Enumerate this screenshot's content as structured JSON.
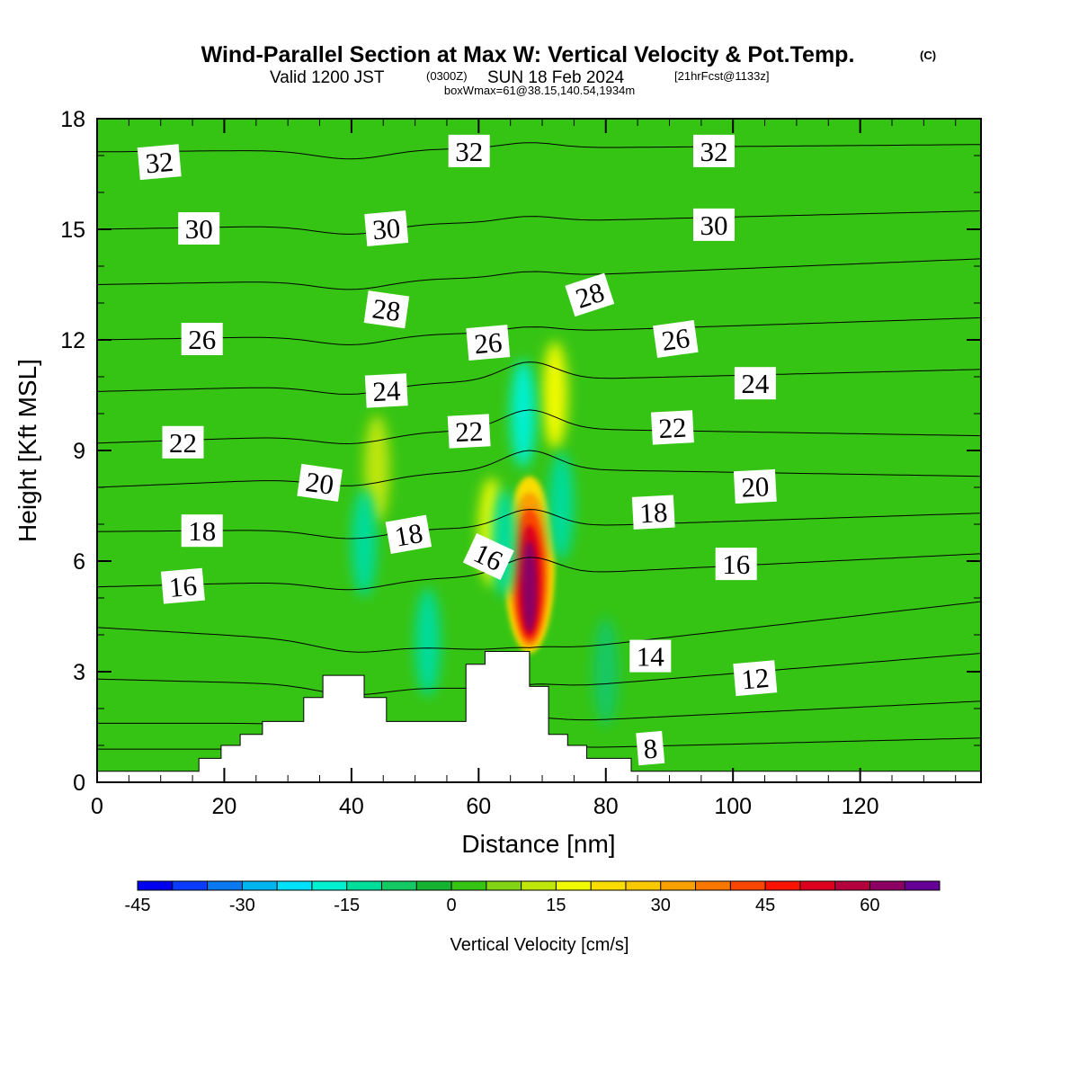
{
  "header": {
    "title_main": "Wind-Parallel Section at Max W: Vertical Velocity & Pot.Temp.",
    "title_copyright": "(C)",
    "valid_a": "Valid 1200 JST",
    "valid_zulu": "(0300Z)",
    "valid_b": "SUN 18 Feb 2024",
    "forecast_info": "[21hrFcst@1133z]",
    "box_info": "boxWmax=61@38.15,140.54,1934m"
  },
  "chart_data": {
    "type": "heatmap",
    "xlabel": "Distance [nm]",
    "ylabel": "Height [Kft MSL]",
    "xlim": [
      0,
      139
    ],
    "ylim": [
      0,
      18
    ],
    "x_ticks": [
      0,
      20,
      40,
      60,
      80,
      100,
      120
    ],
    "y_ticks": [
      0,
      3,
      6,
      9,
      12,
      15,
      18
    ],
    "grid": false,
    "background_value_cm_s": 0,
    "colorbar": {
      "title": "Vertical Velocity [cm/s]",
      "tick_labels": [
        "-45",
        "-30",
        "-15",
        "0",
        "15",
        "30",
        "45",
        "60"
      ],
      "tick_values": [
        -45,
        -30,
        -15,
        0,
        15,
        30,
        45,
        60
      ],
      "bins": [
        {
          "lo": -45,
          "hi": -40,
          "color": "#0000f0"
        },
        {
          "lo": -40,
          "hi": -35,
          "color": "#0a3cff"
        },
        {
          "lo": -35,
          "hi": -30,
          "color": "#0a78f0"
        },
        {
          "lo": -30,
          "hi": -25,
          "color": "#00b4f0"
        },
        {
          "lo": -25,
          "hi": -20,
          "color": "#00e0ff"
        },
        {
          "lo": -20,
          "hi": -15,
          "color": "#00f0d0"
        },
        {
          "lo": -15,
          "hi": -10,
          "color": "#00dc9a"
        },
        {
          "lo": -10,
          "hi": -5,
          "color": "#14c864"
        },
        {
          "lo": -5,
          "hi": 0,
          "color": "#14b432"
        },
        {
          "lo": 0,
          "hi": 5,
          "color": "#36c414"
        },
        {
          "lo": 5,
          "hi": 10,
          "color": "#82d414"
        },
        {
          "lo": 10,
          "hi": 15,
          "color": "#bee60a"
        },
        {
          "lo": 15,
          "hi": 20,
          "color": "#f0fa00"
        },
        {
          "lo": 20,
          "hi": 25,
          "color": "#fadc00"
        },
        {
          "lo": 25,
          "hi": 30,
          "color": "#fac800"
        },
        {
          "lo": 30,
          "hi": 35,
          "color": "#faa000"
        },
        {
          "lo": 35,
          "hi": 40,
          "color": "#fa7800"
        },
        {
          "lo": 40,
          "hi": 45,
          "color": "#fa4600"
        },
        {
          "lo": 45,
          "hi": 50,
          "color": "#fa1400"
        },
        {
          "lo": 50,
          "hi": 55,
          "color": "#dc001e"
        },
        {
          "lo": 55,
          "hi": 60,
          "color": "#b4003c"
        },
        {
          "lo": 60,
          "hi": 65,
          "color": "#8c0064"
        },
        {
          "lo": 65,
          "hi": 70,
          "color": "#640096"
        }
      ]
    },
    "w_features": [
      {
        "kind": "updraft_core",
        "x": 68,
        "y_bottom": 3.5,
        "y_top": 8.3,
        "max_cm_s": 61
      },
      {
        "kind": "updraft_band",
        "x": 62,
        "y": 6.8,
        "value_cm_s": 15
      },
      {
        "kind": "updraft_band",
        "x": 72,
        "y": 10.5,
        "value_cm_s": 15
      },
      {
        "kind": "updraft_band",
        "x": 44,
        "y": 8.5,
        "value_cm_s": 12
      },
      {
        "kind": "downdraft",
        "x": 67,
        "y": 10,
        "value_cm_s": -20
      },
      {
        "kind": "downdraft",
        "x": 64,
        "y": 6.5,
        "value_cm_s": -15
      },
      {
        "kind": "downdraft",
        "x": 73,
        "y": 7.5,
        "value_cm_s": -15
      },
      {
        "kind": "downdraft",
        "x": 42,
        "y": 6.5,
        "value_cm_s": -15
      },
      {
        "kind": "downdraft",
        "x": 52,
        "y": 3.8,
        "value_cm_s": -12
      },
      {
        "kind": "downdraft",
        "x": 80,
        "y": 3.0,
        "value_cm_s": -10
      }
    ],
    "terrain": [
      {
        "x": 0,
        "h": 0.3
      },
      {
        "x": 16,
        "h": 0.3
      },
      {
        "x": 16,
        "h": 0.65
      },
      {
        "x": 19.5,
        "h": 0.65
      },
      {
        "x": 19.5,
        "h": 1.0
      },
      {
        "x": 22.5,
        "h": 1.0
      },
      {
        "x": 22.5,
        "h": 1.3
      },
      {
        "x": 26,
        "h": 1.3
      },
      {
        "x": 26,
        "h": 1.65
      },
      {
        "x": 32.5,
        "h": 1.65
      },
      {
        "x": 32.5,
        "h": 2.3
      },
      {
        "x": 35.5,
        "h": 2.3
      },
      {
        "x": 35.5,
        "h": 2.9
      },
      {
        "x": 42,
        "h": 2.9
      },
      {
        "x": 42,
        "h": 2.3
      },
      {
        "x": 45.5,
        "h": 2.3
      },
      {
        "x": 45.5,
        "h": 1.65
      },
      {
        "x": 58,
        "h": 1.65
      },
      {
        "x": 58,
        "h": 3.2
      },
      {
        "x": 61,
        "h": 3.2
      },
      {
        "x": 61,
        "h": 3.55
      },
      {
        "x": 68,
        "h": 3.55
      },
      {
        "x": 68,
        "h": 2.6
      },
      {
        "x": 71,
        "h": 2.6
      },
      {
        "x": 71,
        "h": 1.3
      },
      {
        "x": 74,
        "h": 1.3
      },
      {
        "x": 74,
        "h": 1.0
      },
      {
        "x": 77,
        "h": 1.0
      },
      {
        "x": 77,
        "h": 0.65
      },
      {
        "x": 84,
        "h": 0.65
      },
      {
        "x": 84,
        "h": 0.3
      },
      {
        "x": 139,
        "h": 0.3
      }
    ],
    "theta_contours": [
      {
        "theta": 8,
        "left_y": 0.9,
        "mid_y": 0.9,
        "right_y": 1.2
      },
      {
        "theta": 10,
        "left_y": 1.6,
        "mid_y": 1.6,
        "right_y": 2.2
      },
      {
        "theta": 12,
        "left_y": 2.8,
        "mid_y": 2.5,
        "right_y": 3.5
      },
      {
        "theta": 14,
        "left_y": 4.2,
        "mid_y": 3.5,
        "right_y": 4.9
      },
      {
        "theta": 16,
        "left_y": 5.3,
        "mid_y": 5.6,
        "right_y": 6.2
      },
      {
        "theta": 18,
        "left_y": 6.8,
        "mid_y": 6.9,
        "right_y": 7.3
      },
      {
        "theta": 20,
        "left_y": 8.0,
        "mid_y": 8.5,
        "right_y": 8.3
      },
      {
        "theta": 22,
        "left_y": 9.2,
        "mid_y": 9.6,
        "right_y": 9.4
      },
      {
        "theta": 24,
        "left_y": 10.6,
        "mid_y": 10.9,
        "right_y": 11.2
      },
      {
        "theta": 26,
        "left_y": 12.0,
        "mid_y": 12.2,
        "right_y": 12.6
      },
      {
        "theta": 28,
        "left_y": 13.5,
        "mid_y": 13.7,
        "right_y": 14.2
      },
      {
        "theta": 30,
        "left_y": 15.0,
        "mid_y": 15.2,
        "right_y": 15.5
      },
      {
        "theta": 32,
        "left_y": 17.1,
        "mid_y": 17.2,
        "right_y": 17.3
      }
    ],
    "contour_labels": [
      {
        "text": "32",
        "x": 9.8,
        "y": 16.8,
        "angle": -5
      },
      {
        "text": "32",
        "x": 58.5,
        "y": 17.1,
        "angle": 0
      },
      {
        "text": "32",
        "x": 97.0,
        "y": 17.1,
        "angle": 0
      },
      {
        "text": "30",
        "x": 16.0,
        "y": 15.0,
        "angle": 0
      },
      {
        "text": "30",
        "x": 45.5,
        "y": 15.0,
        "angle": -5
      },
      {
        "text": "30",
        "x": 97.0,
        "y": 15.1,
        "angle": 0
      },
      {
        "text": "28",
        "x": 45.5,
        "y": 12.8,
        "angle": 8
      },
      {
        "text": "28",
        "x": 77.5,
        "y": 13.2,
        "angle": -18
      },
      {
        "text": "26",
        "x": 16.5,
        "y": 12.0,
        "angle": 0
      },
      {
        "text": "26",
        "x": 61.5,
        "y": 11.9,
        "angle": -5
      },
      {
        "text": "26",
        "x": 91.0,
        "y": 12.0,
        "angle": -8
      },
      {
        "text": "24",
        "x": 45.5,
        "y": 10.6,
        "angle": -3
      },
      {
        "text": "24",
        "x": 103.5,
        "y": 10.8,
        "angle": 0
      },
      {
        "text": "22",
        "x": 13.5,
        "y": 9.2,
        "angle": 0
      },
      {
        "text": "22",
        "x": 58.5,
        "y": 9.5,
        "angle": -3
      },
      {
        "text": "22",
        "x": 90.5,
        "y": 9.6,
        "angle": -3
      },
      {
        "text": "20",
        "x": 35.0,
        "y": 8.1,
        "angle": 8
      },
      {
        "text": "20",
        "x": 103.5,
        "y": 8.0,
        "angle": -3
      },
      {
        "text": "18",
        "x": 16.5,
        "y": 6.8,
        "angle": 0
      },
      {
        "text": "18",
        "x": 49.0,
        "y": 6.7,
        "angle": -10
      },
      {
        "text": "18",
        "x": 87.5,
        "y": 7.3,
        "angle": -3
      },
      {
        "text": "16",
        "x": 13.5,
        "y": 5.3,
        "angle": -5
      },
      {
        "text": "16",
        "x": 61.5,
        "y": 6.1,
        "angle": 25
      },
      {
        "text": "16",
        "x": 100.5,
        "y": 5.9,
        "angle": 0
      },
      {
        "text": "14",
        "x": 87.0,
        "y": 3.4,
        "angle": 0
      },
      {
        "text": "12",
        "x": 103.5,
        "y": 2.8,
        "angle": -5
      },
      {
        "text": "8",
        "x": 87.0,
        "y": 0.9,
        "angle": -5
      }
    ]
  }
}
